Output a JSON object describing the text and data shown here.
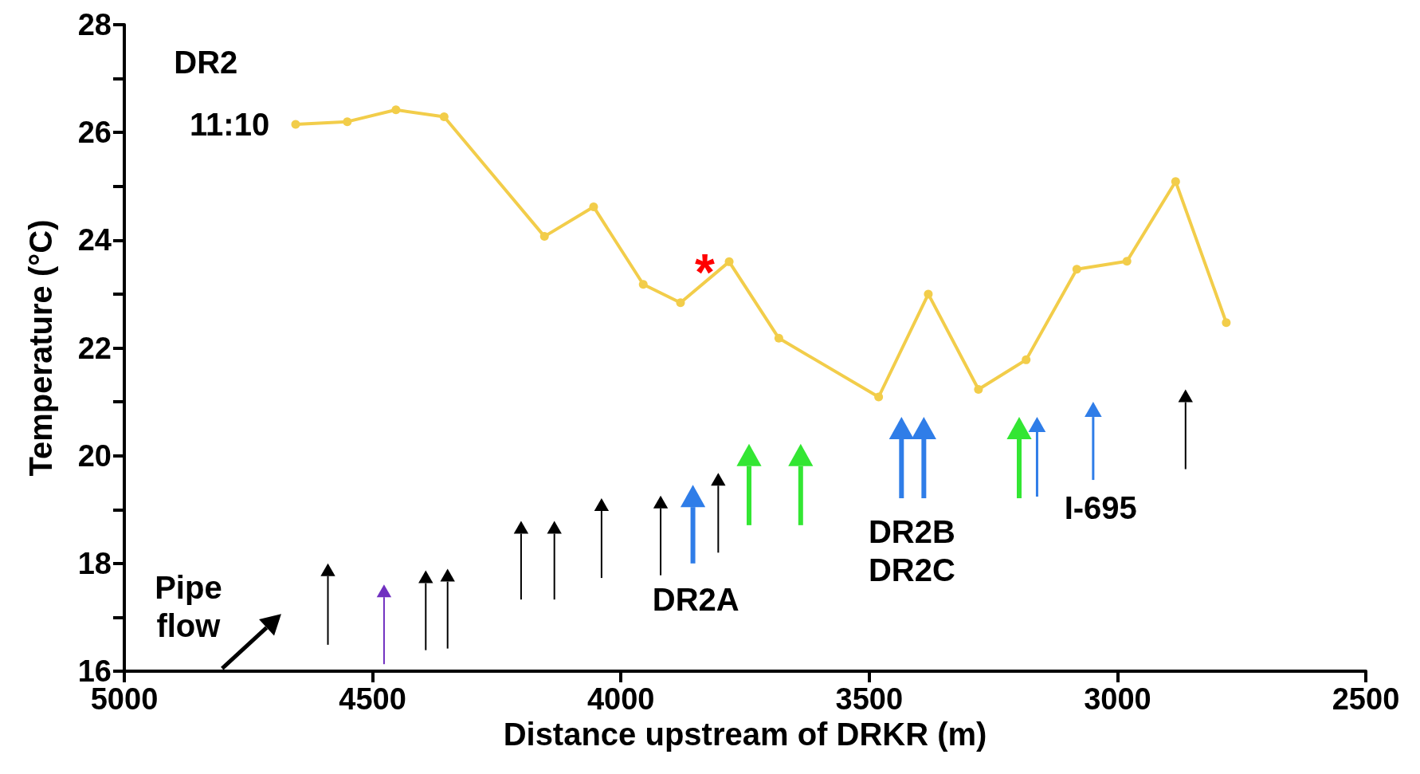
{
  "chart_data": {
    "type": "line",
    "xlabel": "Distance upstream of DRKR (m)",
    "ylabel": "Temperature (°C)",
    "x": [
      4655,
      4551,
      4453,
      4356,
      4154,
      4055,
      3955,
      3880,
      3782,
      3682,
      3481,
      3381,
      3280,
      3184,
      3082,
      2981,
      2883,
      2781
    ],
    "series": [
      {
        "color": "#f2cd4a",
        "values": [
          26.15,
          26.2,
          26.42,
          26.29,
          24.07,
          24.62,
          23.18,
          22.84,
          23.6,
          22.18,
          21.09,
          23.0,
          21.23,
          21.78,
          23.46,
          23.61,
          25.09,
          22.47
        ]
      }
    ],
    "xlim": [
      5000,
      2500
    ],
    "xticks": [
      5000,
      4500,
      4000,
      3500,
      3000,
      2500
    ],
    "ylim": [
      16,
      28
    ],
    "yticks": [
      16,
      {
        "value": 17,
        "label": null
      },
      18,
      {
        "value": 19,
        "label": null
      },
      20,
      {
        "value": 21,
        "label": null
      },
      22,
      {
        "value": 23,
        "label": null
      },
      24,
      {
        "value": 25,
        "label": null
      },
      26,
      {
        "value": 27,
        "label": null
      },
      28
    ],
    "grid": false,
    "marker": "circle",
    "line_style": "solid",
    "annotations": [
      "DR2",
      "11:10",
      "*",
      "Pipe\nflow",
      "DR2A",
      "DR2B\nDR2C",
      "I-695"
    ]
  }
}
